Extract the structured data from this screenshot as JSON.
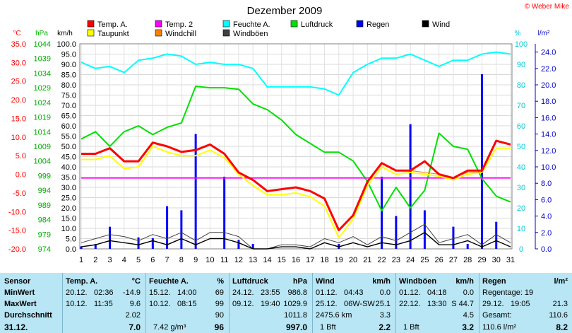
{
  "title": "Dezember 2009",
  "credit": "© Weber Mike",
  "chart_data": {
    "type": "line",
    "x": [
      1,
      2,
      3,
      4,
      5,
      6,
      7,
      8,
      9,
      10,
      11,
      12,
      13,
      14,
      15,
      16,
      17,
      18,
      19,
      20,
      21,
      22,
      23,
      24,
      25,
      26,
      27,
      28,
      29,
      30,
      31
    ],
    "axes": {
      "temp_c": {
        "label": "°C",
        "min": -20,
        "max": 35,
        "ticks": [
          "35.0",
          "30.0",
          "25.0",
          "20.0",
          "15.0",
          "10.0",
          "5.0",
          "0.0",
          "-5.0",
          "-10.0",
          "-15.0",
          "-20.0"
        ]
      },
      "pressure_hpa": {
        "label": "hPa",
        "min": 974,
        "max": 1044,
        "ticks": [
          "1044",
          "1039",
          "1034",
          "1029",
          "1024",
          "1019",
          "1014",
          "1009",
          "1004",
          "999",
          "994",
          "989",
          "984",
          "979",
          "974"
        ]
      },
      "speed_kmh": {
        "label": "km/h",
        "min": 0,
        "max": 100,
        "ticks": [
          "100.0",
          "95.0",
          "90.0",
          "85.0",
          "80.0",
          "75.0",
          "70.0",
          "65.0",
          "60.0",
          "55.0",
          "50.0",
          "45.0",
          "40.0",
          "35.0",
          "30.0",
          "25.0",
          "20.0",
          "15.0",
          "10.0",
          "5.0",
          "0.0"
        ]
      },
      "humidity_pct": {
        "label": "%",
        "min": 0,
        "max": 100,
        "ticks": [
          "100",
          "90",
          "80",
          "70",
          "60",
          "50",
          "40",
          "30",
          "20",
          "10",
          "0"
        ]
      },
      "rain_lm2": {
        "label": "l/m²",
        "min": 0,
        "max": 25,
        "ticks": [
          "24.0",
          "22.0",
          "20.0",
          "18.0",
          "16.0",
          "14.0",
          "12.0",
          "10.0",
          "8.0",
          "6.0",
          "4.0",
          "2.0",
          "0.0"
        ]
      }
    },
    "legend": [
      {
        "name": "Temp. A.",
        "color": "#ff0000"
      },
      {
        "name": "Temp. 2",
        "color": "#ff00ff"
      },
      {
        "name": "Feuchte A.",
        "color": "#00ffff"
      },
      {
        "name": "Luftdruck",
        "color": "#00e000"
      },
      {
        "name": "Regen",
        "color": "#0000ff"
      },
      {
        "name": "Wind",
        "color": "#000000"
      },
      {
        "name": "Taupunkt",
        "color": "#ffff00"
      },
      {
        "name": "Windchill",
        "color": "#ff8000"
      },
      {
        "name": "Windböen",
        "color": "#404040"
      }
    ],
    "series": [
      {
        "name": "Temp. A.",
        "axis": "temp_c",
        "color": "#ff0000",
        "values": [
          5.5,
          5.5,
          7,
          3.5,
          3.5,
          8.5,
          7.5,
          6,
          6.5,
          8,
          5.5,
          0.5,
          -1.5,
          -4.5,
          -4,
          -3.5,
          -4.5,
          -6.5,
          -15,
          -11,
          -2,
          3,
          1,
          1,
          3.5,
          0,
          -1,
          1,
          1,
          9,
          8
        ]
      },
      {
        "name": "Taupunkt",
        "axis": "temp_c",
        "color": "#ffff00",
        "values": [
          4,
          4,
          5,
          1.5,
          2,
          7.5,
          6,
          5,
          5,
          6.5,
          4.5,
          0,
          -3,
          -5.5,
          -5.5,
          -5,
          -6,
          -8.5,
          -17,
          -12,
          -3,
          2,
          0,
          0.5,
          0,
          -0.5,
          -1.5,
          0,
          0.5,
          7,
          7
        ]
      },
      {
        "name": "Windchill",
        "axis": "temp_c",
        "color": "#ff8000",
        "values": [
          5.5,
          5.5,
          7,
          3.5,
          3.5,
          8.5,
          7.5,
          6,
          6.5,
          8,
          5.5,
          0.5,
          -1.5,
          -4.5,
          -4,
          -3.5,
          -4.5,
          -6.5,
          -15,
          -11,
          -2,
          3,
          1,
          1,
          0.5,
          0,
          -1,
          0.5,
          0.5,
          9,
          8
        ]
      },
      {
        "name": "Temp. 2",
        "axis": "temp_c",
        "color": "#ff00ff",
        "values": [
          -1,
          -1,
          -1,
          -1,
          -1,
          -1,
          -1,
          -1,
          -1,
          -1,
          -1,
          -1,
          -1,
          -1,
          -1,
          -1,
          -1,
          -1,
          -1,
          -1,
          -1,
          -1,
          -1,
          -1,
          -1,
          -1,
          -1,
          -1,
          -1,
          -1,
          -1
        ]
      },
      {
        "name": "Feuchte A.",
        "axis": "humidity_pct",
        "color": "#00ffff",
        "values": [
          91,
          88,
          89,
          86,
          92,
          93,
          95,
          94,
          90,
          91,
          90,
          90,
          88,
          79,
          79,
          79,
          79,
          78,
          75,
          86,
          90,
          93,
          93,
          95,
          92,
          89,
          92,
          92,
          95,
          96,
          95
        ]
      },
      {
        "name": "Luftdruck",
        "axis": "pressure_hpa",
        "color": "#00e000",
        "values": [
          1011.5,
          1014,
          1009,
          1014,
          1016,
          1013,
          1015.5,
          1017,
          1029.5,
          1029,
          1029,
          1028.5,
          1023.5,
          1021.5,
          1018,
          1013,
          1010,
          1007,
          1007,
          1004,
          997,
          987,
          995,
          988,
          994,
          1013.5,
          1009,
          1008,
          998,
          992,
          990
        ]
      },
      {
        "name": "Windböen",
        "axis": "speed_kmh",
        "color": "#404040",
        "values": [
          3,
          5,
          7,
          6,
          4,
          7,
          5,
          8,
          4,
          8,
          8,
          6,
          0,
          0,
          2,
          2,
          1,
          5,
          3,
          6,
          2,
          6,
          4,
          8,
          12,
          3,
          5,
          7,
          2,
          7,
          3
        ]
      },
      {
        "name": "Wind",
        "axis": "speed_kmh",
        "color": "#000000",
        "values": [
          1,
          2,
          4,
          3,
          2,
          4,
          2,
          5,
          2,
          5,
          5,
          3,
          0,
          0,
          1,
          1,
          0,
          3,
          1,
          3,
          1,
          3,
          2,
          4,
          8,
          2,
          2,
          4,
          1,
          4,
          1
        ]
      }
    ],
    "bars": {
      "name": "Regen",
      "axis": "rain_lm2",
      "color": "#0000ff",
      "values": [
        0.3,
        0.6,
        2.7,
        0,
        1.4,
        1.3,
        5.2,
        4.7,
        14.0,
        0,
        8.8,
        1.1,
        0.6,
        0,
        0,
        0,
        0,
        0,
        0.6,
        0,
        0,
        8.8,
        4.0,
        15.2,
        4.7,
        0,
        2.7,
        0.6,
        21.3,
        3.3,
        0
      ]
    },
    "grid": true
  },
  "stats": {
    "headers": {
      "sensor": "Sensor",
      "temp": "Temp. A.",
      "temp_unit": "°C",
      "hum": "Feuchte A.",
      "hum_unit": "%",
      "press": "Luftdruck",
      "press_unit": "hPa",
      "wind": "Wind",
      "wind_unit": "km/h",
      "gust": "Windböen",
      "gust_unit": "km/h",
      "rain": "Regen",
      "rain_unit": "l/m²"
    },
    "rows": {
      "min": "MinWert",
      "max": "MaxWert",
      "avg": "Durchschnitt",
      "date": "31.12."
    },
    "temp": {
      "min_d": "20.12.",
      "min_t": "02:36",
      "min_v": "-14.9",
      "max_d": "10.12.",
      "max_t": "11:35",
      "max_v": "9.6",
      "avg_v": "2.02",
      "cur_v": "7.0"
    },
    "hum": {
      "min_d": "15.12.",
      "min_t": "14:00",
      "min_v": "69",
      "max_d": "10.12.",
      "max_t": "08:15",
      "max_v": "99",
      "avg_v": "90",
      "cur_extra": "7.42 g/m³",
      "cur_v": "96"
    },
    "press": {
      "min_d": "24.12.",
      "min_t": "23:55",
      "min_v": "986.8",
      "max_d": "09.12.",
      "max_t": "19:40",
      "max_v": "1029.9",
      "avg_v": "1011.8",
      "cur_v": "997.0"
    },
    "wind": {
      "min_d": "01.12.",
      "min_t": "04:43",
      "min_v": "0.0",
      "max_d": "25.12.",
      "max_t": "06W-SW",
      "max_v": "25.1",
      "avg_a": "2475.6 km",
      "avg_v": "3.3",
      "cur_a": "1 Bft",
      "cur_v": "2.2"
    },
    "gust": {
      "min_d": "01.12.",
      "min_t": "04:18",
      "min_v": "0.0",
      "max_d": "22.12.",
      "max_t": "13:30",
      "max_v": "S 44.7",
      "avg_v": "4.5",
      "cur_a": "1 Bft",
      "cur_v": "3.2"
    },
    "rain": {
      "days": "Regentage: 19",
      "max_d": "29.12.",
      "max_t": "19:05",
      "max_v": "21.3",
      "total_l": "Gesamt:",
      "total_v": "110.6",
      "cur_a": "110.6 l/m²",
      "cur_v": "8.2"
    }
  }
}
